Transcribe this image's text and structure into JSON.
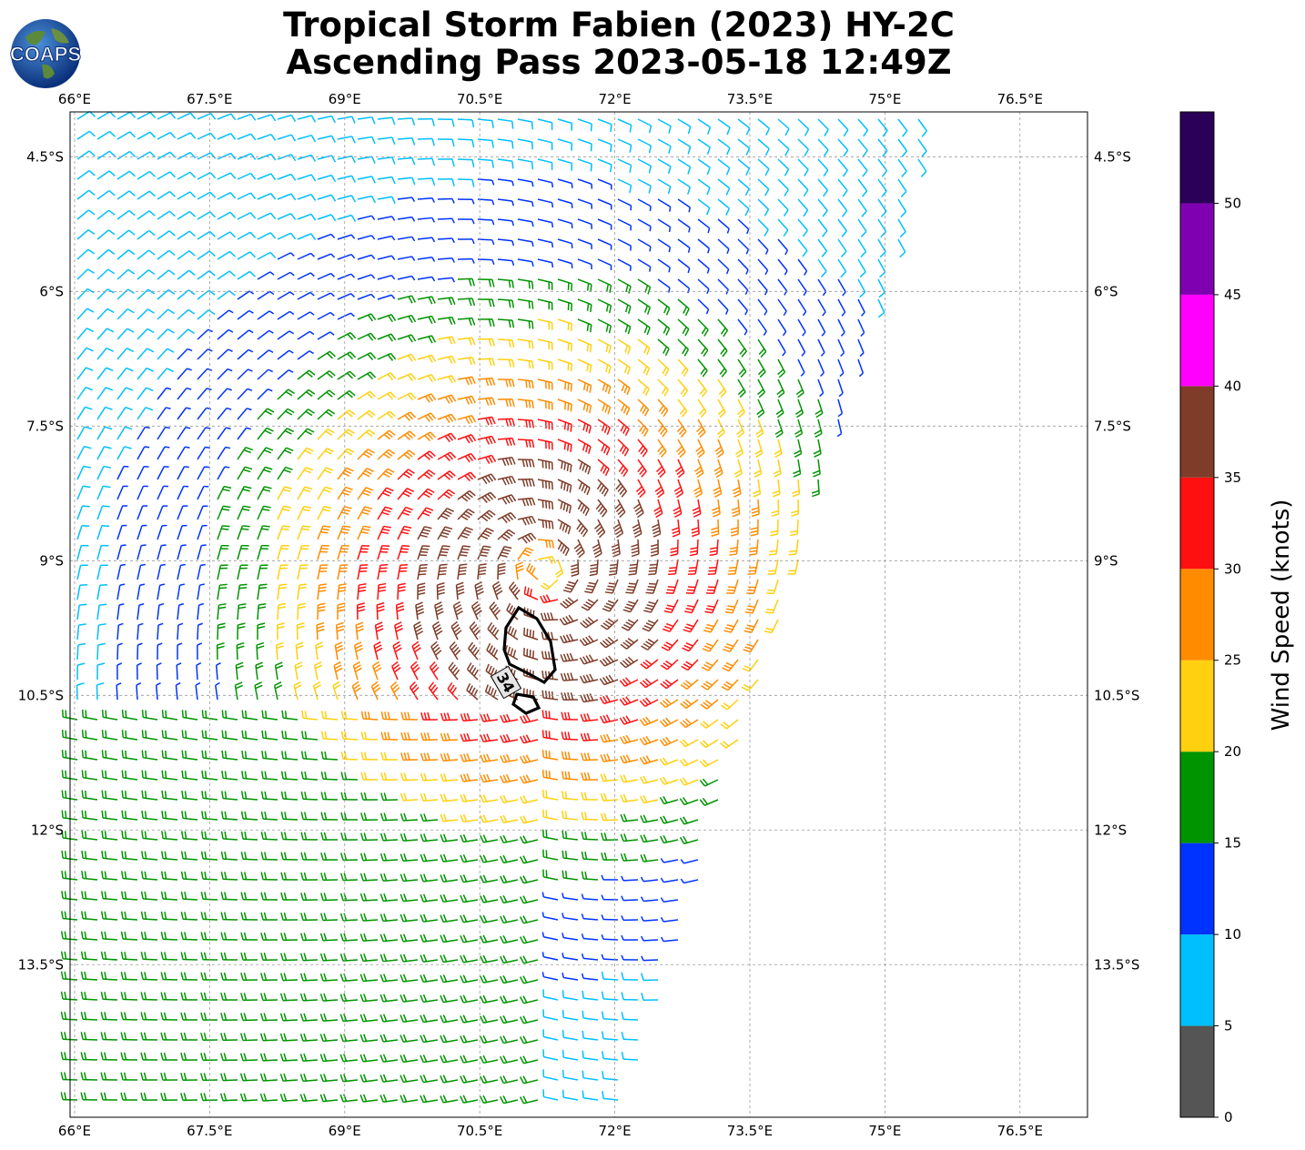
{
  "title": {
    "line1": "Tropical Storm Fabien (2023) HY-2C",
    "line2": "Ascending Pass 2023-05-18 12:49Z"
  },
  "logo": {
    "text": "COAPS",
    "icon": "globe-icon"
  },
  "map": {
    "lon_range": [
      65.95,
      77.25
    ],
    "lat_range": [
      -15.2,
      -4.0
    ],
    "lon_ticks": [
      "66°E",
      "67.5°E",
      "69°E",
      "70.5°E",
      "72°E",
      "73.5°E",
      "75°E",
      "76.5°E"
    ],
    "lon_values": [
      66,
      67.5,
      69,
      70.5,
      72,
      73.5,
      75,
      76.5
    ],
    "lat_ticks": [
      "4.5°S",
      "6°S",
      "7.5°S",
      "9°S",
      "10.5°S",
      "12°S",
      "13.5°S"
    ],
    "lat_values": [
      -4.5,
      -6,
      -7.5,
      -9,
      -10.5,
      -12,
      -13.5
    ],
    "grid": true,
    "storm_center": {
      "lon": 71.2,
      "lat": -9.1
    },
    "swath_edge": {
      "top_lon": 75.6,
      "bottom_lon": 72.1
    },
    "contour_label": "34"
  },
  "colorbar": {
    "label": "Wind Speed (knots)",
    "ticks": [
      "0",
      "5",
      "10",
      "15",
      "20",
      "25",
      "30",
      "35",
      "40",
      "45",
      "50"
    ],
    "bins": [
      {
        "min": 0,
        "max": 5,
        "color": "#555555"
      },
      {
        "min": 5,
        "max": 10,
        "color": "#00bfff"
      },
      {
        "min": 10,
        "max": 15,
        "color": "#0033ff"
      },
      {
        "min": 15,
        "max": 20,
        "color": "#009400"
      },
      {
        "min": 20,
        "max": 25,
        "color": "#ffd010"
      },
      {
        "min": 25,
        "max": 30,
        "color": "#ff8c00"
      },
      {
        "min": 30,
        "max": 35,
        "color": "#ff1010"
      },
      {
        "min": 35,
        "max": 40,
        "color": "#7f3c28"
      },
      {
        "min": 40,
        "max": 45,
        "color": "#ff00ff"
      },
      {
        "min": 45,
        "max": 50,
        "color": "#7f00b0"
      },
      {
        "min": 50,
        "max": 55,
        "color": "#2b0059"
      }
    ]
  }
}
